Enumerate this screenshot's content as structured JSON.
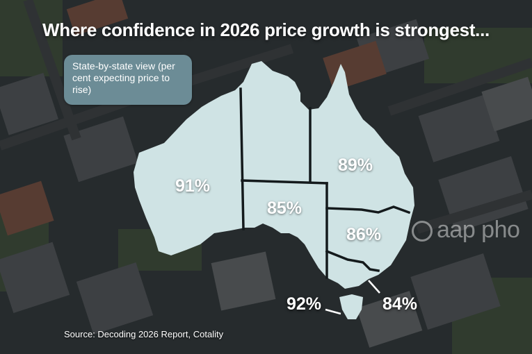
{
  "title": "Where confidence in 2026 price growth is strongest...",
  "legend": "State-by-state view (per cent expecting price to rise)",
  "states": {
    "wa": "91%",
    "nt": "",
    "sa": "85%",
    "qld": "89%",
    "nsw": "86%",
    "vic": "84%",
    "tas": "92%"
  },
  "source": "Source: Decoding 2026 Report, Cotality",
  "watermark": "aap pho",
  "colors": {
    "map_fill": "#cfe3e4",
    "legend_bg": "#6c8c96",
    "text": "#ffffff"
  }
}
